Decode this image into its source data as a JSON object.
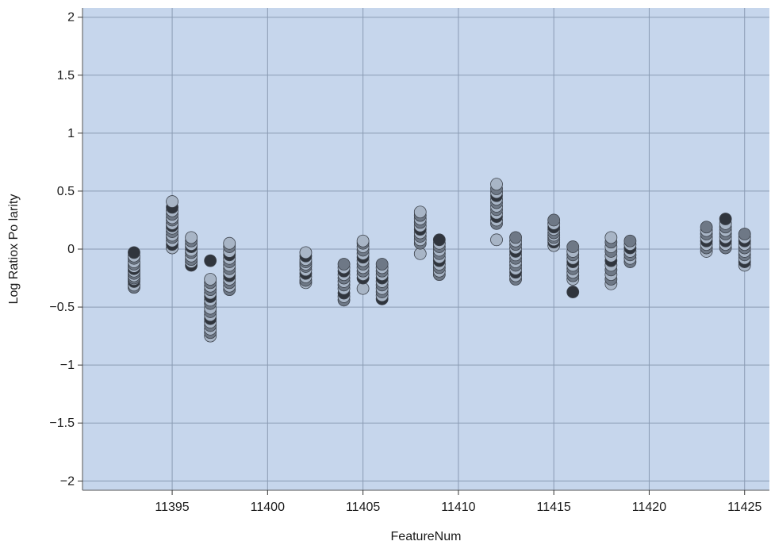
{
  "chart_data": {
    "type": "scatter",
    "title": "",
    "xlabel": "FeatureNum",
    "ylabel": "Log Ratiox Po larity",
    "xlim": [
      11390.3,
      11426.3
    ],
    "ylim": [
      -2.08,
      2.08
    ],
    "xticks": [
      11395,
      11400,
      11405,
      11410,
      11415,
      11420,
      11425
    ],
    "yticks": [
      2,
      1.5,
      1,
      0.5,
      0,
      -0.5,
      -1,
      -1.5,
      -2
    ],
    "ytick_labels": [
      "2",
      "1.5",
      "1",
      "0.5",
      "0",
      "−0.5",
      "−1",
      "−1.5",
      "−2"
    ],
    "grid": true,
    "legend": "none",
    "colors": {
      "plot_background": "#c6d6ec",
      "grid": "#8a9bb3",
      "point_light": "#a8b5c6",
      "point_mid": "#6e7886",
      "point_dark": "#30353d",
      "point_edge": "#3c424b"
    },
    "series": [
      {
        "x": 11393,
        "y": [
          -0.33,
          -0.31,
          -0.28,
          -0.26,
          -0.25,
          -0.23,
          -0.21,
          -0.19,
          -0.17,
          -0.15,
          -0.13,
          -0.11,
          -0.08,
          -0.06,
          -0.03
        ]
      },
      {
        "x": 11395,
        "y": [
          0.41,
          0.36,
          0.33,
          0.3,
          0.27,
          0.25,
          0.22,
          0.2,
          0.18,
          0.15,
          0.12,
          0.1,
          0.07,
          0.04,
          0.01
        ]
      },
      {
        "x": 11396,
        "y": [
          0.1,
          0.07,
          0.04,
          0.02,
          -0.01,
          -0.03,
          -0.06,
          -0.09,
          -0.11,
          -0.14
        ]
      },
      {
        "x": 11397,
        "y": [
          -0.1,
          -0.26,
          -0.29,
          -0.32,
          -0.35,
          -0.38,
          -0.41,
          -0.44,
          -0.47,
          -0.51,
          -0.54,
          -0.57,
          -0.6,
          -0.63,
          -0.66,
          -0.69,
          -0.72,
          -0.75
        ]
      },
      {
        "x": 11398,
        "y": [
          0.05,
          0.02,
          -0.02,
          -0.05,
          -0.08,
          -0.11,
          -0.14,
          -0.17,
          -0.2,
          -0.23,
          -0.26,
          -0.29,
          -0.32,
          -0.35
        ]
      },
      {
        "x": 11402,
        "y": [
          -0.03,
          -0.06,
          -0.09,
          -0.11,
          -0.13,
          -0.15,
          -0.18,
          -0.21,
          -0.24,
          -0.27,
          -0.29
        ]
      },
      {
        "x": 11404,
        "y": [
          -0.13,
          -0.16,
          -0.19,
          -0.22,
          -0.25,
          -0.28,
          -0.31,
          -0.34,
          -0.38,
          -0.41,
          -0.44
        ]
      },
      {
        "x": 11405,
        "y": [
          0.07,
          0.05,
          0.02,
          -0.01,
          -0.04,
          -0.07,
          -0.1,
          -0.13,
          -0.16,
          -0.19,
          -0.22,
          -0.25,
          -0.34
        ]
      },
      {
        "x": 11406,
        "y": [
          -0.13,
          -0.16,
          -0.19,
          -0.22,
          -0.25,
          -0.28,
          -0.31,
          -0.34,
          -0.37,
          -0.4,
          -0.43
        ]
      },
      {
        "x": 11408,
        "y": [
          0.32,
          0.29,
          0.26,
          0.23,
          0.2,
          0.17,
          0.14,
          0.11,
          0.08,
          0.05,
          -0.04
        ]
      },
      {
        "x": 11409,
        "y": [
          0.08,
          0.05,
          0.02,
          -0.01,
          -0.04,
          -0.07,
          -0.1,
          -0.13,
          -0.16,
          -0.19,
          -0.22
        ]
      },
      {
        "x": 11412,
        "y": [
          0.56,
          0.52,
          0.49,
          0.46,
          0.43,
          0.4,
          0.37,
          0.34,
          0.31,
          0.28,
          0.25,
          0.22,
          0.08
        ]
      },
      {
        "x": 11413,
        "y": [
          0.1,
          0.07,
          0.04,
          0.01,
          -0.02,
          -0.05,
          -0.08,
          -0.11,
          -0.14,
          -0.17,
          -0.2,
          -0.23,
          -0.26
        ]
      },
      {
        "x": 11415,
        "y": [
          0.25,
          0.22,
          0.19,
          0.17,
          0.14,
          0.12,
          0.1,
          0.08,
          0.06,
          0.03
        ]
      },
      {
        "x": 11416,
        "y": [
          0.02,
          -0.02,
          -0.05,
          -0.08,
          -0.11,
          -0.14,
          -0.17,
          -0.2,
          -0.23,
          -0.26,
          -0.37
        ]
      },
      {
        "x": 11418,
        "y": [
          0.1,
          0.06,
          0.02,
          -0.02,
          -0.06,
          -0.1,
          -0.14,
          -0.18,
          -0.22,
          -0.26,
          -0.3
        ]
      },
      {
        "x": 11419,
        "y": [
          0.07,
          0.04,
          0.01,
          -0.02,
          -0.05,
          -0.08,
          -0.11
        ]
      },
      {
        "x": 11423,
        "y": [
          0.19,
          0.16,
          0.13,
          0.1,
          0.07,
          0.04,
          0.01,
          -0.02
        ]
      },
      {
        "x": 11424,
        "y": [
          0.26,
          0.22,
          0.19,
          0.16,
          0.13,
          0.1,
          0.07,
          0.04,
          0.01
        ]
      },
      {
        "x": 11425,
        "y": [
          0.13,
          0.1,
          0.07,
          0.04,
          0.01,
          -0.02,
          -0.05,
          -0.08,
          -0.11,
          -0.14
        ]
      }
    ]
  }
}
